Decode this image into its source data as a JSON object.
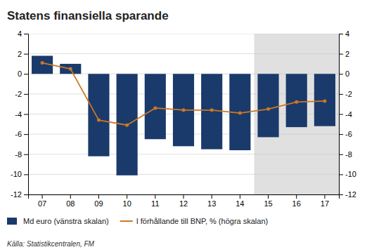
{
  "chart_data": {
    "type": "bar",
    "title": "Statens finansiella sparande",
    "source": "Källa: Statistikcentralen, FM",
    "categories": [
      "07",
      "08",
      "09",
      "10",
      "11",
      "12",
      "13",
      "14",
      "15",
      "16",
      "17"
    ],
    "series": [
      {
        "name": "Md euro (vänstra skalan)",
        "color": "#1a3a6b",
        "values": [
          1.8,
          1.0,
          -8.2,
          -10.1,
          -6.5,
          -7.2,
          -7.5,
          -7.6,
          -6.3,
          -5.3,
          -5.2
        ]
      },
      {
        "name": "I förhållande till BNP, % (högra skalan)",
        "type": "line",
        "axis": "y2",
        "color": "#cc7722",
        "marker": "circle",
        "values": [
          1.1,
          0.5,
          -4.6,
          -5.1,
          -3.4,
          -3.6,
          -3.6,
          -3.9,
          -3.5,
          -2.8,
          -2.7
        ]
      }
    ],
    "ylim": [
      -12,
      4
    ],
    "yticks": [
      -12,
      -10,
      -8,
      -6,
      -4,
      -2,
      0,
      2,
      4
    ],
    "y2lim": [
      -12,
      4
    ],
    "y2ticks": [
      -12,
      -10,
      -8,
      -6,
      -4,
      -2,
      0,
      2,
      4
    ],
    "grid": true,
    "legend": "bottom",
    "forecast_from": "15",
    "forecast_color": "#e0e0e0"
  }
}
